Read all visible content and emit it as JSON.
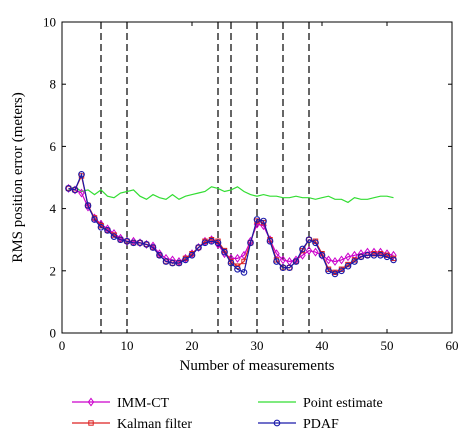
{
  "chart_data": {
    "type": "line",
    "xlabel": "Number of measurements",
    "ylabel": "RMS position error (meters)",
    "xlim": [
      0,
      60
    ],
    "ylim": [
      0,
      10
    ],
    "xticks": [
      0,
      10,
      20,
      30,
      40,
      50,
      60
    ],
    "yticks": [
      0,
      2,
      4,
      6,
      8,
      10
    ],
    "grid": false,
    "vlines": [
      6,
      10,
      24,
      26,
      30,
      34,
      38
    ],
    "legend_position": "bottom",
    "series": [
      {
        "name": "IMM-CT",
        "color": "#cc00cc",
        "marker": "diamond",
        "x": [
          1,
          2,
          3,
          4,
          5,
          6,
          7,
          8,
          9,
          10,
          11,
          12,
          13,
          14,
          15,
          16,
          17,
          18,
          19,
          20,
          21,
          22,
          23,
          24,
          25,
          26,
          27,
          28,
          29,
          30,
          31,
          32,
          33,
          34,
          35,
          36,
          37,
          38,
          39,
          40,
          41,
          42,
          43,
          44,
          45,
          46,
          47,
          48,
          49,
          50,
          51
        ],
        "y": [
          4.65,
          4.6,
          4.5,
          4.05,
          3.7,
          3.5,
          3.35,
          3.2,
          3.05,
          2.95,
          2.95,
          2.9,
          2.85,
          2.8,
          2.55,
          2.4,
          2.35,
          2.3,
          2.4,
          2.55,
          2.75,
          2.95,
          3.0,
          2.85,
          2.55,
          2.4,
          2.4,
          2.5,
          2.95,
          3.5,
          3.45,
          3.0,
          2.55,
          2.35,
          2.3,
          2.35,
          2.5,
          2.65,
          2.6,
          2.5,
          2.35,
          2.3,
          2.35,
          2.45,
          2.5,
          2.55,
          2.6,
          2.6,
          2.6,
          2.55,
          2.5
        ]
      },
      {
        "name": "Kalman filter",
        "color": "#dd2222",
        "marker": "square",
        "x": [
          1,
          2,
          3,
          4,
          5,
          6,
          7,
          8,
          9,
          10,
          11,
          12,
          13,
          14,
          15,
          16,
          17,
          18,
          19,
          20,
          21,
          22,
          23,
          24,
          25,
          26,
          27,
          28,
          29,
          30,
          31,
          32,
          33,
          34,
          35,
          36,
          37,
          38,
          39,
          40,
          41,
          42,
          43,
          44,
          45,
          46,
          47,
          48,
          49,
          50,
          51
        ],
        "y": [
          4.65,
          4.6,
          5.05,
          4.1,
          3.7,
          3.45,
          3.3,
          3.15,
          3.0,
          2.95,
          2.9,
          2.9,
          2.85,
          2.75,
          2.5,
          2.3,
          2.25,
          2.25,
          2.4,
          2.55,
          2.75,
          2.95,
          3.0,
          2.95,
          2.65,
          2.3,
          2.15,
          2.3,
          2.9,
          3.6,
          3.55,
          3.0,
          2.35,
          2.1,
          2.1,
          2.3,
          2.65,
          3.0,
          2.95,
          2.55,
          2.05,
          1.95,
          2.05,
          2.2,
          2.35,
          2.45,
          2.5,
          2.55,
          2.55,
          2.5,
          2.4
        ]
      },
      {
        "name": "Point estimate",
        "color": "#33dd33",
        "marker": "none",
        "x": [
          1,
          2,
          3,
          4,
          5,
          6,
          7,
          8,
          9,
          10,
          11,
          12,
          13,
          14,
          15,
          16,
          17,
          18,
          19,
          20,
          21,
          22,
          23,
          24,
          25,
          26,
          27,
          28,
          29,
          30,
          31,
          32,
          33,
          34,
          35,
          36,
          37,
          38,
          39,
          40,
          41,
          42,
          43,
          44,
          45,
          46,
          47,
          48,
          49,
          50,
          51
        ],
        "y": [
          4.6,
          4.7,
          4.55,
          4.6,
          4.45,
          4.6,
          4.4,
          4.35,
          4.5,
          4.55,
          4.6,
          4.4,
          4.3,
          4.45,
          4.35,
          4.3,
          4.45,
          4.3,
          4.4,
          4.45,
          4.5,
          4.55,
          4.7,
          4.65,
          4.55,
          4.6,
          4.7,
          4.55,
          4.45,
          4.4,
          4.45,
          4.4,
          4.4,
          4.35,
          4.35,
          4.4,
          4.35,
          4.35,
          4.3,
          4.35,
          4.4,
          4.3,
          4.3,
          4.2,
          4.35,
          4.3,
          4.3,
          4.35,
          4.4,
          4.4,
          4.35
        ]
      },
      {
        "name": "PDAF",
        "color": "#1a1aaa",
        "marker": "circle",
        "x": [
          1,
          2,
          3,
          4,
          5,
          6,
          7,
          8,
          9,
          10,
          11,
          12,
          13,
          14,
          15,
          16,
          17,
          18,
          19,
          20,
          21,
          22,
          23,
          24,
          25,
          26,
          27,
          28,
          29,
          30,
          31,
          32,
          33,
          34,
          35,
          36,
          37,
          38,
          39,
          40,
          41,
          42,
          43,
          44,
          45,
          46,
          47,
          48,
          49,
          50,
          51
        ],
        "y": [
          4.65,
          4.6,
          5.1,
          4.1,
          3.65,
          3.4,
          3.3,
          3.1,
          3.0,
          2.95,
          2.9,
          2.9,
          2.85,
          2.75,
          2.5,
          2.3,
          2.25,
          2.25,
          2.35,
          2.5,
          2.75,
          2.9,
          2.95,
          2.9,
          2.6,
          2.25,
          2.05,
          1.95,
          2.9,
          3.65,
          3.6,
          2.95,
          2.3,
          2.1,
          2.1,
          2.3,
          2.7,
          3.0,
          2.9,
          2.5,
          2.0,
          1.9,
          2.0,
          2.15,
          2.3,
          2.45,
          2.5,
          2.5,
          2.5,
          2.45,
          2.35
        ]
      }
    ]
  }
}
